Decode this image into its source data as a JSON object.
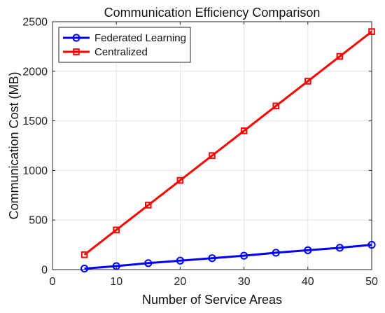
{
  "chart_data": {
    "type": "line",
    "title": "Communication Efficiency Comparison",
    "xlabel": "Number of Service Areas",
    "ylabel": "Communication Cost (MB)",
    "xlim": [
      0,
      50
    ],
    "ylim": [
      0,
      2500
    ],
    "xticks": [
      0,
      10,
      20,
      30,
      40,
      50
    ],
    "yticks": [
      0,
      500,
      1000,
      1500,
      2000,
      2500
    ],
    "grid": true,
    "legend_position": "top-left",
    "x": [
      5,
      10,
      15,
      20,
      25,
      30,
      35,
      40,
      45,
      50
    ],
    "series": [
      {
        "name": "Federated Learning",
        "color": "#0000ff",
        "marker": "circle",
        "values": [
          10,
          35,
          65,
          90,
          115,
          140,
          170,
          195,
          220,
          250
        ]
      },
      {
        "name": "Centralized",
        "color": "#ff0000",
        "marker": "square",
        "values": [
          150,
          400,
          650,
          900,
          1150,
          1400,
          1650,
          1900,
          2150,
          2400
        ]
      }
    ]
  }
}
